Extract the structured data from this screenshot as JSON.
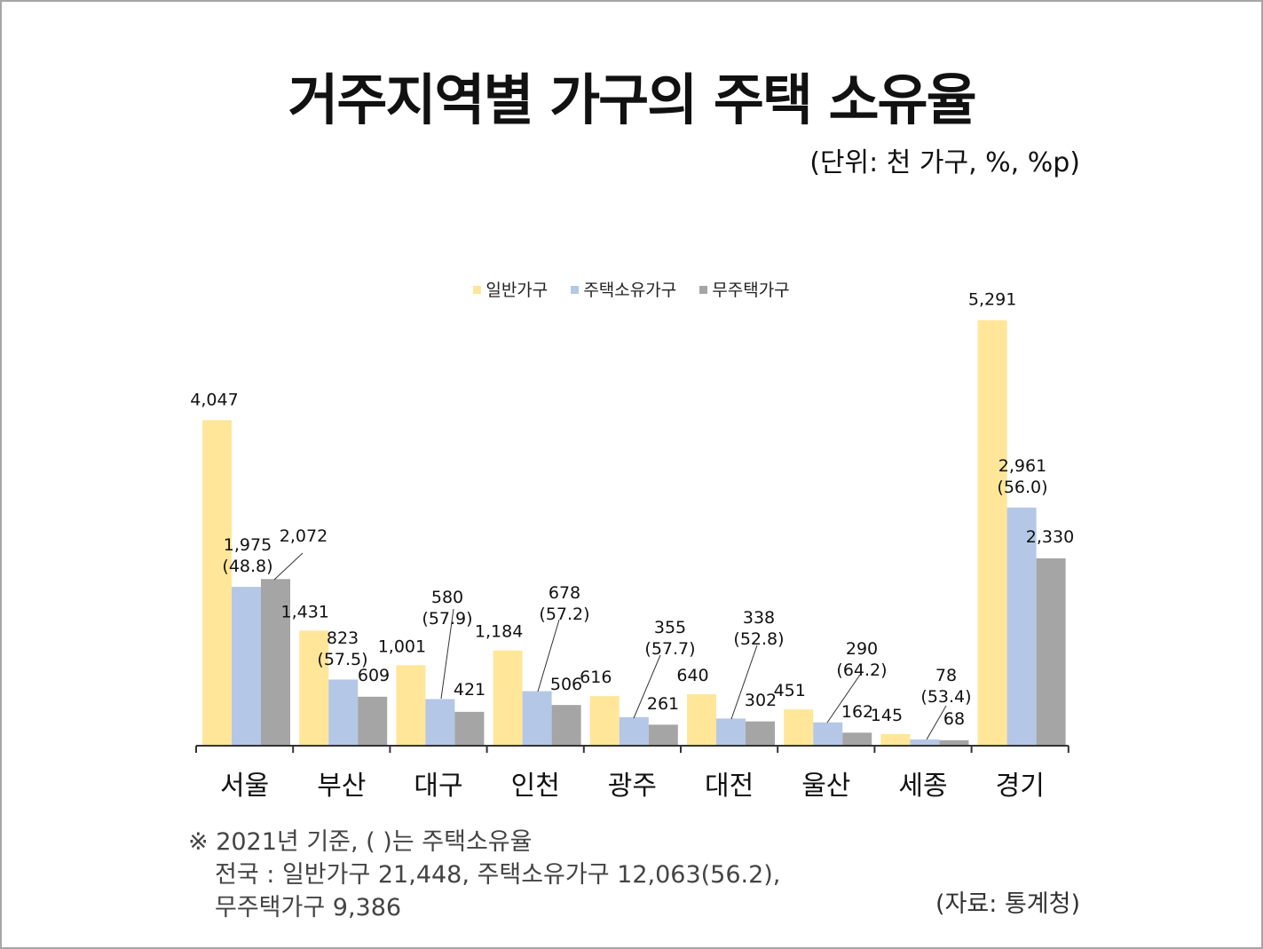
{
  "title": "거주지역별 가구의 주택 소유율",
  "unit": "(단위: 천 가구, %, %p)",
  "note": {
    "line1": "※ 2021년 기준, ( )는 주택소유율",
    "line2": "전국 : 일반가구 21,448, 주택소유가구 12,063(56.2),",
    "line3": "무주택가구 9,386"
  },
  "source": "(자료: 통계청)",
  "chart_data": {
    "type": "bar",
    "title": "거주지역별 가구의 주택 소유율",
    "categories": [
      "서울",
      "부산",
      "대구",
      "인천",
      "광주",
      "대전",
      "울산",
      "세종",
      "경기"
    ],
    "series": [
      {
        "name": "일반가구",
        "color": "#FFE699",
        "values": [
          4047,
          1431,
          1001,
          1184,
          616,
          640,
          451,
          145,
          5291
        ],
        "labels": [
          "4,047",
          "1,431",
          "1,001",
          "1,184",
          "616",
          "640",
          "451",
          "145",
          "5,291"
        ]
      },
      {
        "name": "주택소유가구",
        "color": "#B4C7E7",
        "values": [
          1975,
          823,
          580,
          678,
          355,
          338,
          290,
          78,
          2961
        ],
        "labels": [
          "1,975",
          "823",
          "580",
          "678",
          "355",
          "338",
          "290",
          "78",
          "2,961"
        ],
        "rates": [
          "(48.8)",
          "(57.5)",
          "(57.9)",
          "(57.2)",
          "(57.7)",
          "(52.8)",
          "(64.2)",
          "(53.4)",
          "(56.0)"
        ]
      },
      {
        "name": "무주택가구",
        "color": "#A5A5A5",
        "values": [
          2072,
          609,
          421,
          506,
          261,
          302,
          162,
          68,
          2330
        ],
        "labels": [
          "2,072",
          "609",
          "421",
          "506",
          "261",
          "302",
          "162",
          "68",
          "2,330"
        ]
      }
    ],
    "legend_position": "top-center",
    "grid": false
  }
}
